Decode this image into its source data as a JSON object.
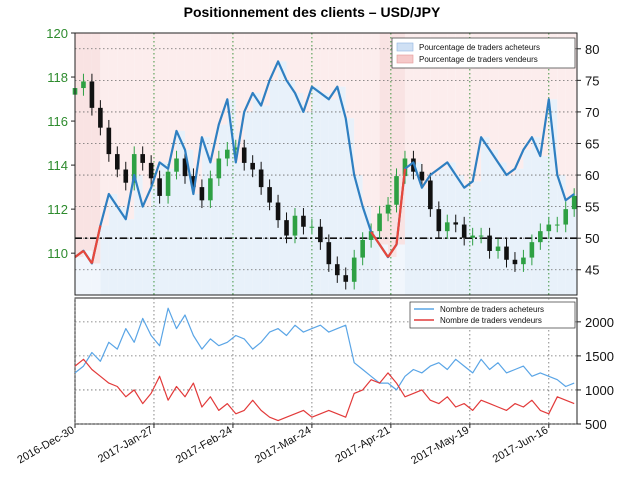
{
  "chart_data": [
    {
      "type": "candlestick+line",
      "title": "Positionnement des clients – USD/JPY",
      "left_axis": {
        "ticks": [
          110,
          112,
          114,
          116,
          118,
          120
        ],
        "ylim": [
          108.1,
          120.0
        ]
      },
      "right_axis": {
        "ticks": [
          45,
          50,
          55,
          60,
          65,
          70,
          75,
          80
        ],
        "ylim": [
          41.0,
          82.5
        ]
      },
      "reference_line": {
        "axis": "right",
        "value": 50
      },
      "legend": {
        "placement": "top-right",
        "entries": [
          {
            "label": "Pourcentage de traders acheteurs",
            "color": "#cfe0f4"
          },
          {
            "label": "Pourcentage de traders vendeurs",
            "color": "#f6c9c9"
          }
        ]
      },
      "x_day_range": [
        0,
        178
      ],
      "price_close": {
        "x_days": [
          0,
          3,
          6,
          9,
          12,
          15,
          18,
          21,
          24,
          27,
          30,
          33,
          36,
          39,
          42,
          45,
          48,
          51,
          54,
          57,
          60,
          63,
          66,
          69,
          72,
          75,
          78,
          81,
          84,
          87,
          90,
          93,
          96,
          99,
          102,
          105,
          108,
          111,
          114,
          117,
          120,
          123,
          126,
          129,
          132,
          135,
          138,
          141,
          144,
          147,
          150,
          153,
          156,
          159,
          162,
          165,
          168,
          171,
          174,
          177
        ],
        "values": [
          117.5,
          117.8,
          116.6,
          115.7,
          114.5,
          113.8,
          113.2,
          114.5,
          114.1,
          113.4,
          112.6,
          113.7,
          114.3,
          113.5,
          113.0,
          112.4,
          113.4,
          114.3,
          114.7,
          114.8,
          114.1,
          113.8,
          113.0,
          112.3,
          111.5,
          110.8,
          111.7,
          111.2,
          111.2,
          110.5,
          109.5,
          109.0,
          108.7,
          109.8,
          110.6,
          111.0,
          111.8,
          112.2,
          113.5,
          114.3,
          113.7,
          113.3,
          112.0,
          111.0,
          111.4,
          111.3,
          110.7,
          110.8,
          110.8,
          110.1,
          110.3,
          109.7,
          109.5,
          109.8,
          110.5,
          111.0,
          111.3,
          111.3,
          112.0,
          112.6
        ]
      },
      "pct_buyers": {
        "x_days": [
          0,
          3,
          6,
          9,
          12,
          15,
          18,
          21,
          24,
          27,
          30,
          33,
          36,
          39,
          42,
          45,
          48,
          51,
          54,
          57,
          60,
          63,
          66,
          69,
          72,
          75,
          78,
          81,
          84,
          87,
          90,
          93,
          96,
          99,
          102,
          105,
          108,
          111,
          114,
          117,
          120,
          123,
          126,
          129,
          132,
          135,
          138,
          141,
          144,
          147,
          150,
          153,
          156,
          159,
          162,
          165,
          168,
          171,
          174,
          177
        ],
        "values": [
          47,
          48,
          46,
          52,
          57,
          55,
          53,
          60,
          55,
          58,
          62,
          61,
          67,
          64,
          57,
          66,
          62,
          68,
          72,
          62,
          70,
          73,
          71,
          75,
          78,
          75,
          73,
          70,
          74,
          73,
          72,
          74,
          69,
          60,
          55,
          51,
          49,
          47,
          49,
          61,
          62,
          58,
          60,
          61,
          62,
          60,
          58,
          59,
          66,
          64,
          62,
          60,
          61,
          64,
          66,
          63,
          72,
          60,
          56,
          57
        ]
      },
      "pct_sellers": {
        "x_days": [
          0,
          3,
          6,
          9,
          12,
          15,
          18,
          21,
          24,
          27,
          30,
          33,
          36,
          39,
          42,
          45,
          48,
          51,
          54,
          57,
          60,
          63,
          66,
          69,
          72,
          75,
          78,
          81,
          84,
          87,
          90,
          93,
          96,
          99,
          102,
          105,
          108,
          111,
          114,
          117,
          120,
          123,
          126,
          129,
          132,
          135,
          138,
          141,
          144,
          147,
          150,
          153,
          156,
          159,
          162,
          165,
          168,
          171,
          174,
          177
        ],
        "values": [
          53,
          52,
          54,
          48,
          43,
          45,
          47,
          40,
          45,
          42,
          38,
          39,
          33,
          36,
          43,
          34,
          38,
          32,
          28,
          38,
          30,
          27,
          29,
          25,
          22,
          25,
          27,
          30,
          26,
          27,
          28,
          26,
          31,
          40,
          45,
          49,
          51,
          53,
          51,
          39,
          38,
          42,
          40,
          39,
          38,
          40,
          42,
          41,
          34,
          36,
          38,
          40,
          39,
          36,
          34,
          37,
          28,
          40,
          44,
          43
        ]
      }
    },
    {
      "type": "line",
      "right_axis": {
        "ticks": [
          500,
          1000,
          1500,
          2000
        ],
        "ylim": [
          500,
          2350
        ]
      },
      "x_tick_labels": [
        "2016-Dec-30",
        "2017-Jan-27",
        "2017-Feb-24",
        "2017-Mar-24",
        "2017-Apr-21",
        "2017-May-19",
        "2017-Jun-16"
      ],
      "x_tick_days": [
        0,
        28,
        56,
        84,
        112,
        140,
        168
      ],
      "legend": {
        "placement": "top-right",
        "entries": [
          {
            "label": "Nombre de traders acheteurs",
            "color": "#5aa5e6"
          },
          {
            "label": "Nombre de traders vendeurs",
            "color": "#e23a3a"
          }
        ]
      },
      "series": [
        {
          "name": "Nombre de traders acheteurs",
          "x_days": [
            0,
            3,
            6,
            9,
            12,
            15,
            18,
            21,
            24,
            27,
            30,
            33,
            36,
            39,
            42,
            45,
            48,
            51,
            54,
            57,
            60,
            63,
            66,
            69,
            72,
            75,
            78,
            81,
            84,
            87,
            90,
            93,
            96,
            99,
            102,
            105,
            108,
            111,
            114,
            117,
            120,
            123,
            126,
            129,
            132,
            135,
            138,
            141,
            144,
            147,
            150,
            153,
            156,
            159,
            162,
            165,
            168,
            171,
            174,
            177
          ],
          "values": [
            1250,
            1350,
            1550,
            1420,
            1700,
            1600,
            1900,
            1700,
            2050,
            1800,
            1650,
            2200,
            1900,
            2100,
            1800,
            1600,
            1750,
            1650,
            1700,
            1800,
            1750,
            1600,
            1700,
            1850,
            1900,
            1800,
            1950,
            1850,
            1900,
            1950,
            1850,
            1900,
            1950,
            1400,
            1300,
            1200,
            1100,
            1100,
            1000,
            1200,
            1300,
            1250,
            1350,
            1400,
            1300,
            1450,
            1350,
            1250,
            1450,
            1300,
            1400,
            1250,
            1300,
            1350,
            1200,
            1250,
            1200,
            1150,
            1050,
            1100
          ]
        },
        {
          "name": "Nombre de traders vendeurs",
          "x_days": [
            0,
            3,
            6,
            9,
            12,
            15,
            18,
            21,
            24,
            27,
            30,
            33,
            36,
            39,
            42,
            45,
            48,
            51,
            54,
            57,
            60,
            63,
            66,
            69,
            72,
            75,
            78,
            81,
            84,
            87,
            90,
            93,
            96,
            99,
            102,
            105,
            108,
            111,
            114,
            117,
            120,
            123,
            126,
            129,
            132,
            135,
            138,
            141,
            144,
            147,
            150,
            153,
            156,
            159,
            162,
            165,
            168,
            171,
            174,
            177
          ],
          "values": [
            1350,
            1450,
            1300,
            1200,
            1100,
            1050,
            900,
            1000,
            800,
            950,
            1200,
            850,
            1050,
            900,
            1100,
            750,
            900,
            700,
            800,
            650,
            700,
            850,
            700,
            600,
            550,
            600,
            650,
            700,
            600,
            650,
            700,
            650,
            600,
            950,
            1000,
            1150,
            1100,
            1250,
            1100,
            900,
            950,
            1000,
            850,
            800,
            900,
            750,
            800,
            700,
            850,
            800,
            750,
            700,
            800,
            750,
            850,
            700,
            650,
            900,
            850,
            800
          ]
        }
      ]
    }
  ]
}
